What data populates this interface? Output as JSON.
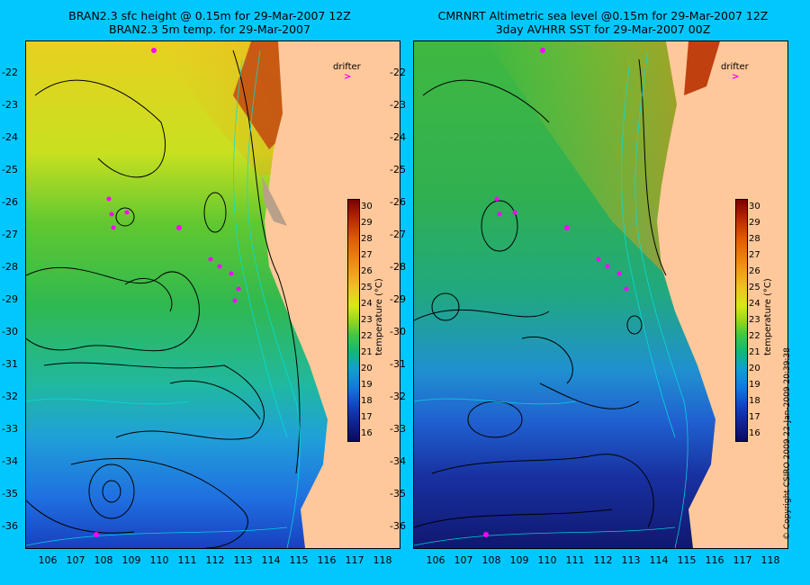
{
  "left_panel": {
    "title_line1": "BRAN2.3 sfc height @ 0.15m for 29-Mar-2007 12Z",
    "title_line2": "BRAN2.3 5m temp. for 29-Mar-2007"
  },
  "right_panel": {
    "title_line1": "CMRNRT Altimetric sea level  @0.15m  for 29-Mar-2007 12Z",
    "title_line2": "3day AVHRR SST for 29-Mar-2007 00Z"
  },
  "axes": {
    "lat_ticks": [
      "-22",
      "-23",
      "-24",
      "-25",
      "-26",
      "-27",
      "-28",
      "-29",
      "-30",
      "-31",
      "-32",
      "-33",
      "-34",
      "-35",
      "-36"
    ],
    "lon_ticks": [
      "106",
      "107",
      "108",
      "109",
      "110",
      "111",
      "112",
      "113",
      "114",
      "115",
      "116",
      "117",
      "118"
    ]
  },
  "colorbar": {
    "ticks": [
      "30",
      "29",
      "28",
      "27",
      "26",
      "25",
      "24",
      "23",
      "22",
      "21",
      "20",
      "19",
      "18",
      "17",
      "16"
    ],
    "label": "temperature (°C)"
  },
  "legend": {
    "drifter_label": "drifter"
  },
  "copyright": "© Copyright CSIRO 2009   22-Jan-2009 20:39:38",
  "colors": {
    "background": "#00c8ff",
    "land": "#ffc89a",
    "drifter": "#ff00ff"
  }
}
